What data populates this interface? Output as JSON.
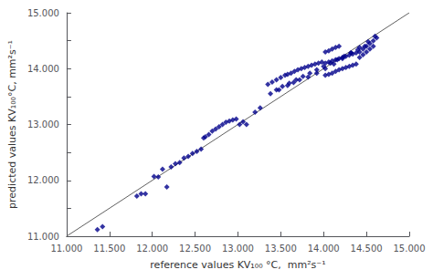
{
  "chart_data": {
    "type": "scatter",
    "xlabel": "reference values KV₁₀₀ °C,  mm²s⁻¹",
    "ylabel": "predicted values KV₁₀₀°C, mm²s⁻¹",
    "xlim": [
      11.0,
      15.0
    ],
    "ylim": [
      11.0,
      15.0
    ],
    "xticks": [
      {
        "value": 11.0,
        "label": "11.000"
      },
      {
        "value": 11.5,
        "label": "11.500"
      },
      {
        "value": 12.0,
        "label": "12.000"
      },
      {
        "value": 12.5,
        "label": "12.500"
      },
      {
        "value": 13.0,
        "label": "13.000"
      },
      {
        "value": 13.5,
        "label": "13.500"
      },
      {
        "value": 14.0,
        "label": "14.000"
      },
      {
        "value": 14.5,
        "label": "14.500"
      },
      {
        "value": 15.0,
        "label": "15.000"
      }
    ],
    "yticks": [
      {
        "value": 11.0,
        "label": "11.000"
      },
      {
        "value": 11.5,
        "label": ""
      },
      {
        "value": 12.0,
        "label": "12.000"
      },
      {
        "value": 12.5,
        "label": ""
      },
      {
        "value": 13.0,
        "label": "13.000"
      },
      {
        "value": 13.5,
        "label": ""
      },
      {
        "value": 14.0,
        "label": "14.000"
      },
      {
        "value": 14.5,
        "label": ""
      },
      {
        "value": 15.0,
        "label": "15.000"
      }
    ],
    "grid": false,
    "series": [
      {
        "type": "line",
        "color": "#606060",
        "x": [
          11.0,
          15.0
        ],
        "values": [
          11.0,
          15.0
        ]
      },
      {
        "type": "scatter",
        "marker": "diamond",
        "color": "#00008B",
        "x": [
          11.36,
          11.42,
          11.82,
          11.87,
          11.92,
          12.02,
          12.07,
          12.12,
          12.17,
          12.22,
          12.27,
          12.32,
          12.37,
          12.42,
          12.47,
          12.52,
          12.57,
          12.6,
          12.62,
          12.66,
          12.7,
          12.74,
          12.78,
          12.82,
          12.86,
          12.9,
          12.94,
          12.98,
          13.02,
          13.06,
          13.1,
          13.2,
          13.26,
          13.35,
          13.4,
          13.45,
          13.5,
          13.55,
          13.58,
          13.62,
          13.66,
          13.7,
          13.74,
          13.78,
          13.82,
          13.86,
          13.9,
          13.94,
          13.98,
          14.02,
          14.06,
          14.1,
          14.14,
          14.18,
          14.22,
          14.26,
          14.3,
          14.34,
          14.38,
          14.02,
          14.06,
          14.1,
          14.14,
          14.18,
          14.22,
          14.26,
          14.3,
          14.34,
          14.38,
          14.02,
          14.06,
          14.1,
          14.14,
          14.18,
          14.42,
          14.46,
          14.5,
          14.54,
          14.58,
          14.62,
          14.42,
          14.46,
          14.5,
          14.54,
          14.58,
          13.45,
          13.52,
          13.6,
          13.68,
          13.76,
          13.84,
          13.92,
          14.0,
          14.08,
          14.16,
          14.24,
          14.32,
          14.4,
          14.48,
          13.38,
          13.48,
          13.58,
          13.65,
          13.72,
          13.82,
          13.92,
          14.02,
          14.12,
          14.22,
          14.32,
          14.42,
          14.52,
          14.6
        ],
        "values": [
          11.12,
          11.17,
          11.72,
          11.76,
          11.76,
          12.07,
          12.06,
          12.2,
          11.88,
          12.24,
          12.3,
          12.32,
          12.4,
          12.43,
          12.48,
          12.52,
          12.56,
          12.76,
          12.78,
          12.82,
          12.88,
          12.92,
          12.96,
          13.0,
          13.04,
          13.06,
          13.08,
          13.1,
          13.0,
          13.05,
          13.0,
          13.22,
          13.3,
          13.72,
          13.76,
          13.8,
          13.84,
          13.88,
          13.9,
          13.92,
          13.95,
          13.98,
          14.0,
          14.02,
          14.04,
          14.06,
          14.08,
          14.1,
          14.12,
          13.88,
          13.9,
          13.92,
          13.95,
          13.98,
          14.0,
          14.02,
          14.04,
          14.06,
          14.08,
          14.1,
          14.12,
          14.14,
          14.16,
          14.18,
          14.2,
          14.22,
          14.24,
          14.26,
          14.28,
          14.3,
          14.32,
          14.35,
          14.38,
          14.4,
          14.3,
          14.35,
          14.4,
          14.45,
          14.5,
          14.55,
          14.2,
          14.25,
          14.3,
          14.35,
          14.4,
          13.62,
          13.68,
          13.74,
          13.8,
          13.86,
          13.92,
          13.98,
          14.04,
          14.1,
          14.16,
          14.22,
          14.28,
          14.34,
          14.4,
          13.55,
          13.62,
          13.7,
          13.75,
          13.8,
          13.85,
          13.92,
          14.0,
          14.08,
          14.18,
          14.28,
          14.38,
          14.48,
          14.58
        ]
      }
    ]
  }
}
